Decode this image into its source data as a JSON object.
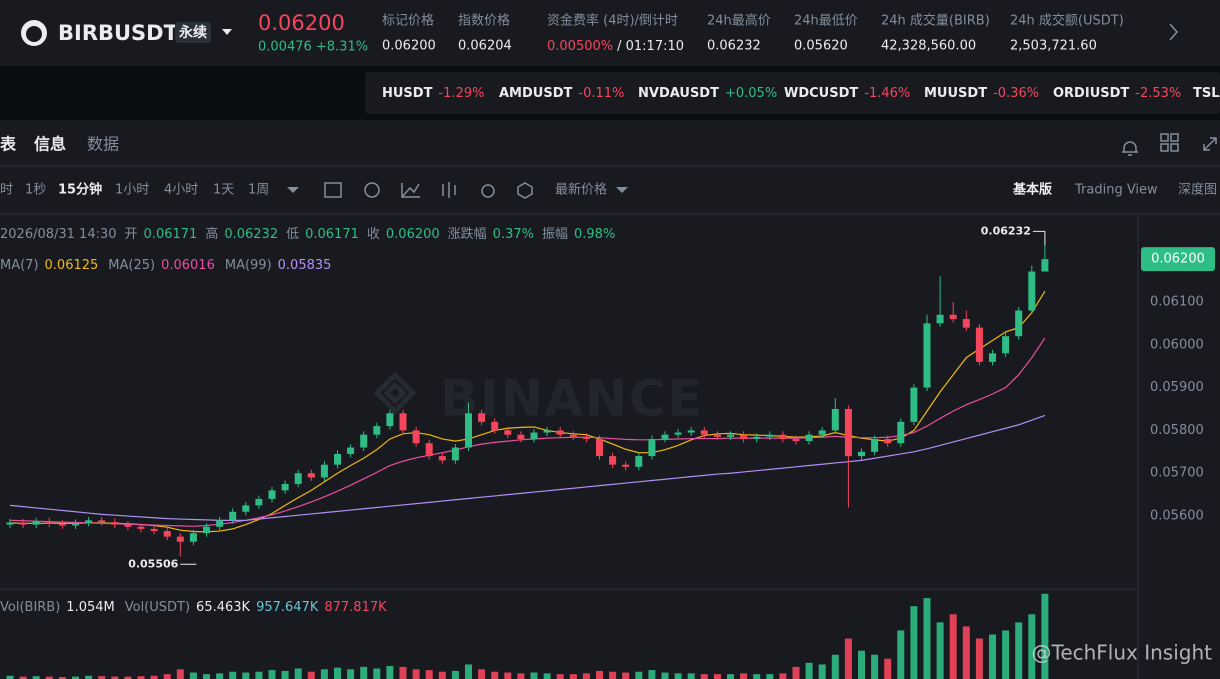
{
  "header": {
    "symbol": "BIRBUSDT",
    "contract": "永续",
    "price": "0.06200",
    "change": "0.00476 +8.31%",
    "stats": [
      {
        "label": "标记价格",
        "value": "0.06200"
      },
      {
        "label": "指数价格",
        "value": "0.06204"
      },
      {
        "label": "资金费率 (4时)/倒计时",
        "value": "0.00500%",
        "countdown": "/ 01:17:10"
      },
      {
        "label": "24h最高价",
        "value": "0.06232"
      },
      {
        "label": "24h最低价",
        "value": "0.05620"
      },
      {
        "label": "24h 成交量(BIRB)",
        "value": "42,328,560.00"
      },
      {
        "label": "24h 成交额(USDT)",
        "value": "2,503,721.60"
      }
    ]
  },
  "ticker": [
    {
      "symbol": "HUSDT",
      "change": "-1.29%"
    },
    {
      "symbol": "AMDUSDT",
      "change": "-0.11%"
    },
    {
      "symbol": "NVDAUSDT",
      "change": "+0.05%"
    },
    {
      "symbol": "WDCUSDT",
      "change": "-1.46%"
    },
    {
      "symbol": "MUUSDT",
      "change": "-0.36%"
    },
    {
      "symbol": "ORDIUSDT",
      "change": "-2.53%"
    },
    {
      "symbol": "TSLA",
      "change": ""
    }
  ],
  "tabs": [
    "表",
    "信息",
    "数据"
  ],
  "intervals": [
    "时",
    "1秒",
    "15分钟",
    "1小时",
    "4小时",
    "1天",
    "1周"
  ],
  "price_type": "最新价格",
  "views": [
    "基本版",
    "Trading View",
    "深度图"
  ],
  "ohlc_info": {
    "time": "2026/08/31 14:30",
    "items": [
      {
        "label": "开",
        "value": "0.06171"
      },
      {
        "label": "高",
        "value": "0.06232"
      },
      {
        "label": "低",
        "value": "0.06171"
      },
      {
        "label": "收",
        "value": "0.06200"
      },
      {
        "label": "涨跌幅",
        "value": "0.37%"
      },
      {
        "label": "振幅",
        "value": "0.98%"
      }
    ]
  },
  "vol_info": [
    {
      "label": "Vol(BIRB)",
      "value": "1.054M"
    },
    {
      "label": "Vol(USDT)",
      "value": "65.463K"
    },
    {
      "label": "",
      "value": "957.647K"
    },
    {
      "label": "",
      "value": "877.817K"
    }
  ],
  "watermark": "BINANCE",
  "credit": "@TechFlux Insight",
  "chart_data": {
    "type": "candlestick",
    "up_color": "#2ebd85",
    "down_color": "#f6465d",
    "ylim": [
      0.05432,
      0.06303
    ],
    "yticks": [
      {
        "value": 0.056,
        "label": "0.05600"
      },
      {
        "value": 0.057,
        "label": "0.05700"
      },
      {
        "value": 0.058,
        "label": "0.05800"
      },
      {
        "value": 0.059,
        "label": "0.05900"
      },
      {
        "value": 0.06,
        "label": "0.06000"
      },
      {
        "value": 0.061,
        "label": "0.06100"
      }
    ],
    "price_tag": "0.06200",
    "max_label": "0.06232",
    "min_label": "0.05506",
    "open": [
      0.0558,
      0.05585,
      0.0558,
      0.05588,
      0.05582,
      0.05578,
      0.05584,
      0.0559,
      0.05586,
      0.0558,
      0.05575,
      0.0557,
      0.05565,
      0.05552,
      0.0554,
      0.0556,
      0.05575,
      0.0559,
      0.0561,
      0.05625,
      0.0564,
      0.0566,
      0.05675,
      0.057,
      0.0569,
      0.0572,
      0.05745,
      0.0576,
      0.0579,
      0.0581,
      0.0584,
      0.058,
      0.0577,
      0.0574,
      0.0573,
      0.0576,
      0.0584,
      0.0582,
      0.058,
      0.0579,
      0.0578,
      0.05795,
      0.058,
      0.0579,
      0.05785,
      0.0578,
      0.0574,
      0.0572,
      0.05715,
      0.0574,
      0.0578,
      0.0579,
      0.05795,
      0.058,
      0.0579,
      0.05785,
      0.0579,
      0.0578,
      0.05785,
      0.0579,
      0.0578,
      0.05775,
      0.0579,
      0.058,
      0.0585,
      0.0574,
      0.0575,
      0.0578,
      0.0577,
      0.0582,
      0.059,
      0.0605,
      0.0607,
      0.0606,
      0.0604,
      0.0596,
      0.0598,
      0.0602,
      0.0608,
      0.06171
    ],
    "high": [
      0.05593,
      0.05593,
      0.05596,
      0.05596,
      0.0559,
      0.05592,
      0.05598,
      0.05598,
      0.05594,
      0.05588,
      0.05583,
      0.05578,
      0.05573,
      0.0556,
      0.05568,
      0.05583,
      0.05598,
      0.05618,
      0.05633,
      0.05648,
      0.05668,
      0.05683,
      0.05708,
      0.05708,
      0.05728,
      0.05753,
      0.05768,
      0.05798,
      0.05818,
      0.05848,
      0.05848,
      0.05808,
      0.05778,
      0.05748,
      0.05768,
      0.05865,
      0.05848,
      0.05828,
      0.05808,
      0.05798,
      0.05803,
      0.05808,
      0.05808,
      0.05798,
      0.05793,
      0.05788,
      0.05748,
      0.05728,
      0.05748,
      0.05788,
      0.05798,
      0.05803,
      0.05808,
      0.05808,
      0.05798,
      0.05798,
      0.05798,
      0.05793,
      0.05798,
      0.05798,
      0.05788,
      0.05798,
      0.05808,
      0.05875,
      0.05858,
      0.05758,
      0.05788,
      0.05788,
      0.05828,
      0.05908,
      0.0607,
      0.0616,
      0.061,
      0.0608,
      0.06048,
      0.05988,
      0.06028,
      0.06088,
      0.06185,
      0.06232
    ],
    "low": [
      0.05572,
      0.05572,
      0.05572,
      0.05574,
      0.0557,
      0.0557,
      0.05576,
      0.05578,
      0.05572,
      0.05567,
      0.05562,
      0.05557,
      0.05544,
      0.05506,
      0.05532,
      0.05552,
      0.05567,
      0.05582,
      0.05602,
      0.05617,
      0.05632,
      0.05652,
      0.05667,
      0.05682,
      0.05682,
      0.05712,
      0.05737,
      0.05752,
      0.05782,
      0.05802,
      0.05792,
      0.05762,
      0.05732,
      0.05722,
      0.05722,
      0.05752,
      0.05812,
      0.05792,
      0.05782,
      0.05772,
      0.05772,
      0.05787,
      0.05782,
      0.05777,
      0.05772,
      0.05732,
      0.05712,
      0.05707,
      0.05707,
      0.05732,
      0.05772,
      0.05782,
      0.05787,
      0.05782,
      0.05777,
      0.05777,
      0.05772,
      0.05772,
      0.05777,
      0.05772,
      0.05767,
      0.05767,
      0.05782,
      0.05792,
      0.0562,
      0.05732,
      0.05742,
      0.05762,
      0.05762,
      0.05812,
      0.05892,
      0.06042,
      0.06052,
      0.06032,
      0.05952,
      0.05952,
      0.05972,
      0.06012,
      0.06072,
      0.06171
    ],
    "close": [
      0.05585,
      0.0558,
      0.05588,
      0.05582,
      0.05578,
      0.05584,
      0.0559,
      0.05586,
      0.0558,
      0.05575,
      0.0557,
      0.05565,
      0.05552,
      0.0554,
      0.0556,
      0.05575,
      0.0559,
      0.0561,
      0.05625,
      0.0564,
      0.0566,
      0.05675,
      0.057,
      0.0569,
      0.0572,
      0.05745,
      0.0576,
      0.0579,
      0.0581,
      0.0584,
      0.058,
      0.0577,
      0.0574,
      0.0573,
      0.0576,
      0.0584,
      0.0582,
      0.058,
      0.0579,
      0.0578,
      0.05795,
      0.058,
      0.0579,
      0.05785,
      0.0578,
      0.0574,
      0.0572,
      0.05715,
      0.0574,
      0.0578,
      0.0579,
      0.05795,
      0.058,
      0.0579,
      0.05785,
      0.0579,
      0.0578,
      0.05785,
      0.0579,
      0.0578,
      0.05775,
      0.0579,
      0.058,
      0.0585,
      0.0574,
      0.0575,
      0.0578,
      0.0577,
      0.0582,
      0.059,
      0.0605,
      0.0607,
      0.0606,
      0.0604,
      0.0596,
      0.0598,
      0.0602,
      0.0608,
      0.06171,
      0.062
    ],
    "series": [
      {
        "name": "MA(7)",
        "label_value": "0.06125",
        "color": "#f0b90b",
        "values": [
          0.05584,
          0.05583,
          0.05583,
          0.05583,
          0.05583,
          0.05583,
          0.05584,
          0.05584,
          0.05583,
          0.05582,
          0.0558,
          0.05578,
          0.05574,
          0.05567,
          0.05564,
          0.05563,
          0.05565,
          0.0557,
          0.0558,
          0.05592,
          0.05606,
          0.05625,
          0.05643,
          0.0566,
          0.0568,
          0.057,
          0.05718,
          0.05735,
          0.05755,
          0.0578,
          0.05792,
          0.05795,
          0.0579,
          0.0578,
          0.05775,
          0.0578,
          0.0579,
          0.058,
          0.05805,
          0.05807,
          0.05808,
          0.058,
          0.05795,
          0.05792,
          0.0579,
          0.0578,
          0.05768,
          0.05756,
          0.05748,
          0.05748,
          0.05755,
          0.05765,
          0.05778,
          0.05788,
          0.05792,
          0.05793,
          0.0579,
          0.05789,
          0.05788,
          0.05786,
          0.05784,
          0.05785,
          0.05787,
          0.05795,
          0.05788,
          0.05782,
          0.05778,
          0.05775,
          0.05782,
          0.058,
          0.05845,
          0.0589,
          0.0593,
          0.0597,
          0.0599,
          0.0601,
          0.0603,
          0.0604,
          0.06075,
          0.06125
        ]
      },
      {
        "name": "MA(25)",
        "label_value": "0.06016",
        "color": "#e84fa0",
        "values": [
          0.0559,
          0.05589,
          0.05588,
          0.05587,
          0.05586,
          0.05585,
          0.05584,
          0.05583,
          0.05582,
          0.05581,
          0.0558,
          0.05579,
          0.05578,
          0.05577,
          0.05576,
          0.05578,
          0.05581,
          0.05585,
          0.0559,
          0.05596,
          0.05603,
          0.05612,
          0.05622,
          0.05633,
          0.05645,
          0.05658,
          0.05672,
          0.05687,
          0.05702,
          0.05718,
          0.05728,
          0.05736,
          0.05742,
          0.05748,
          0.05754,
          0.05762,
          0.05768,
          0.05772,
          0.05775,
          0.05778,
          0.0578,
          0.05782,
          0.05783,
          0.05784,
          0.05784,
          0.05783,
          0.05781,
          0.05779,
          0.05778,
          0.05778,
          0.05779,
          0.0578,
          0.05781,
          0.05781,
          0.05781,
          0.05782,
          0.05782,
          0.05782,
          0.05782,
          0.05782,
          0.05782,
          0.05783,
          0.05784,
          0.05786,
          0.05784,
          0.05783,
          0.05783,
          0.05784,
          0.05788,
          0.05795,
          0.0581,
          0.05828,
          0.05845,
          0.0586,
          0.05872,
          0.05885,
          0.059,
          0.0593,
          0.0597,
          0.06016
        ]
      },
      {
        "name": "MA(99)",
        "label_value": "0.05835",
        "color": "#b18ff5",
        "values": [
          0.05625,
          0.05622,
          0.05619,
          0.05616,
          0.05613,
          0.0561,
          0.05607,
          0.05604,
          0.05602,
          0.056,
          0.05598,
          0.05596,
          0.05594,
          0.05593,
          0.05592,
          0.05591,
          0.0559,
          0.0559,
          0.0559,
          0.05593,
          0.05596,
          0.05599,
          0.05602,
          0.05605,
          0.05608,
          0.05611,
          0.05614,
          0.05617,
          0.0562,
          0.05623,
          0.05626,
          0.05629,
          0.05632,
          0.05635,
          0.05638,
          0.05641,
          0.05644,
          0.05647,
          0.0565,
          0.05653,
          0.05656,
          0.05659,
          0.05662,
          0.05665,
          0.05668,
          0.05671,
          0.05674,
          0.05677,
          0.0568,
          0.05683,
          0.05686,
          0.05689,
          0.05692,
          0.05695,
          0.05698,
          0.057,
          0.05703,
          0.05706,
          0.05709,
          0.05712,
          0.05715,
          0.05718,
          0.05721,
          0.05724,
          0.05727,
          0.0573,
          0.05735,
          0.0574,
          0.05745,
          0.0575,
          0.05757,
          0.05765,
          0.05773,
          0.05781,
          0.05789,
          0.05797,
          0.05805,
          0.05813,
          0.05824,
          0.05835
        ]
      }
    ],
    "volume": {
      "ylim": [
        0,
        1100
      ],
      "values": [
        40,
        30,
        35,
        30,
        25,
        30,
        40,
        35,
        30,
        30,
        35,
        40,
        60,
        120,
        80,
        60,
        70,
        90,
        80,
        90,
        110,
        100,
        130,
        90,
        120,
        140,
        120,
        150,
        130,
        160,
        150,
        120,
        110,
        90,
        100,
        180,
        120,
        90,
        80,
        70,
        80,
        70,
        60,
        60,
        70,
        100,
        90,
        80,
        90,
        110,
        80,
        70,
        70,
        60,
        60,
        60,
        70,
        60,
        60,
        70,
        150,
        200,
        180,
        300,
        500,
        350,
        300,
        250,
        600,
        900,
        1000,
        700,
        800,
        650,
        500,
        550,
        600,
        700,
        800,
        1054
      ]
    }
  }
}
